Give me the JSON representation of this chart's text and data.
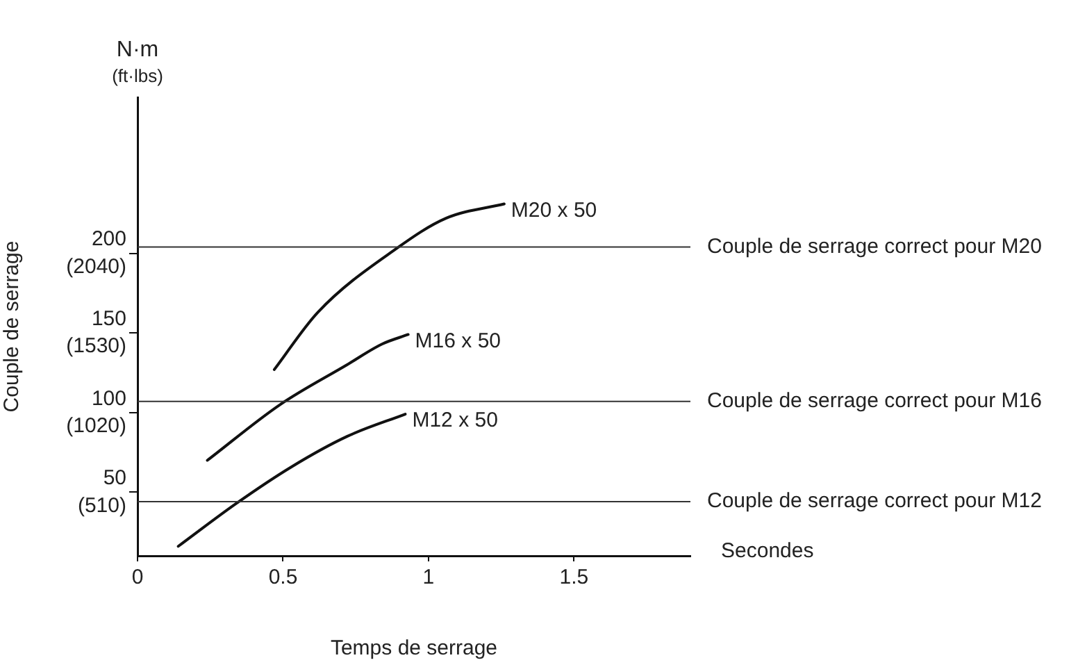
{
  "chart_data": {
    "type": "line",
    "xlabel": "Temps de serrage",
    "y2label": "Couple de serrage",
    "annotations": [
      "N·m",
      "(ft·lbs)",
      "Secondes"
    ],
    "xlim": [
      0,
      1.9
    ],
    "xticks": [
      0,
      0.5,
      1,
      1.5
    ],
    "ylim": [
      10,
      298
    ],
    "yticks": [
      50,
      100,
      150,
      200
    ],
    "y2lim": [
      102,
      3039.6
    ],
    "y2ticks": [
      {
        "value": 510,
        "label": "(510)"
      },
      {
        "value": 1020,
        "label": "(1020)"
      },
      {
        "value": 1530,
        "label": "(1530)"
      },
      {
        "value": 2040,
        "label": "(2040)"
      }
    ],
    "grid": false,
    "legend": false,
    "marker": "none",
    "line_style": "solid",
    "series": [
      {
        "name": "M20 x 50",
        "color": "#111111",
        "x": [
          0.47,
          0.62,
          0.89,
          1.06,
          1.26
        ],
        "values": [
          127,
          163,
          203,
          222,
          231
        ]
      },
      {
        "name": "M16 x 50",
        "color": "#111111",
        "x": [
          0.24,
          0.49,
          0.72,
          0.84,
          0.93
        ],
        "values": [
          70,
          105,
          130,
          143,
          149
        ]
      },
      {
        "name": "M12 x 50",
        "color": "#111111",
        "x": [
          0.14,
          0.34,
          0.53,
          0.72,
          0.92
        ],
        "values": [
          16,
          43,
          66,
          85,
          99
        ]
      }
    ],
    "ref_lines": [
      {
        "axis": "y",
        "value": 204,
        "label": "Couple de serrage correct pour M20",
        "color": "#333333"
      },
      {
        "axis": "y",
        "value": 107,
        "label": "Couple de serrage correct pour M16",
        "color": "#333333"
      },
      {
        "axis": "y",
        "value": 44,
        "label": "Couple de serrage correct pour M12",
        "color": "#333333"
      }
    ]
  }
}
